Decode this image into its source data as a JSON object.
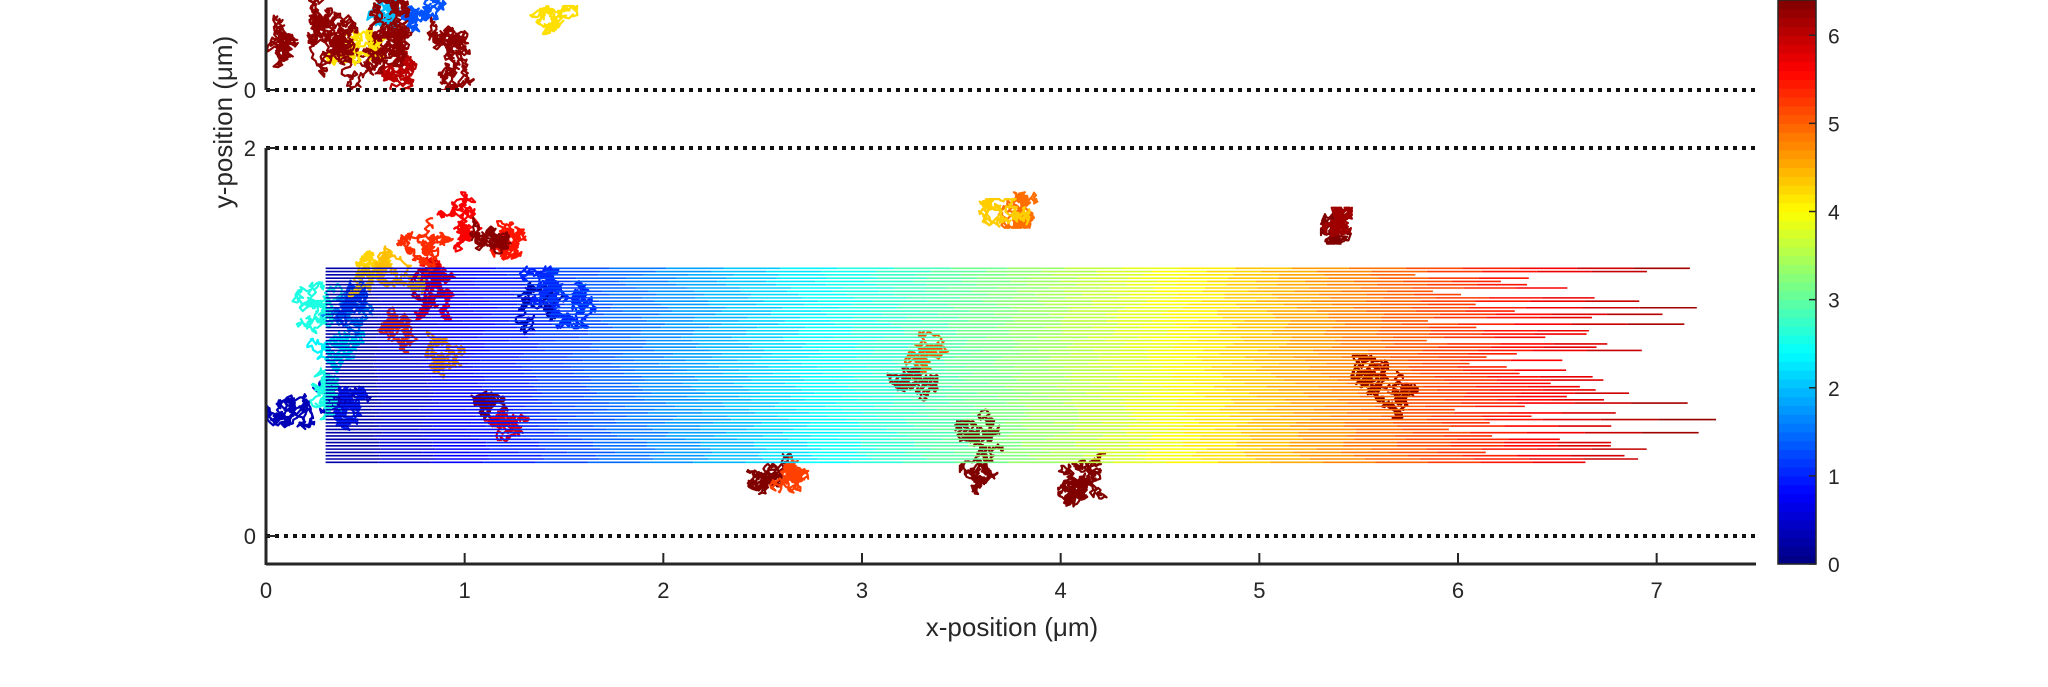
{
  "chart_data": {
    "type": "scatter",
    "xlabel": "x-position (μm)",
    "ylabel": "y-position (μm)",
    "xlim": [
      0,
      7.5
    ],
    "x_ticks": [
      "0",
      "1",
      "2",
      "3",
      "4",
      "5",
      "6",
      "7"
    ],
    "y_ticks_upper_panel": [
      "0"
    ],
    "y_ticks_lower_panel": [
      "2",
      "0"
    ],
    "panels": [
      {
        "name": "",
        "ylim": [
          0,
          0.9
        ],
        "boundary_lines_y": [
          0
        ]
      },
      {
        "name": "",
        "ylim": [
          0,
          2
        ],
        "boundary_lines_y": [
          0,
          2
        ]
      }
    ],
    "colorbar": {
      "ticks": [
        "0",
        "1",
        "2",
        "3",
        "4",
        "5",
        "6"
      ],
      "range": [
        0,
        6.4
      ],
      "colormap": "jet"
    },
    "trace_clouds": [
      {
        "x_center": 0.3,
        "y_center": 1.0,
        "spread_x": 0.35,
        "spread_y": 0.9,
        "value": 1.5
      },
      {
        "x_center": 0.7,
        "y_center": 1.2,
        "spread_x": 0.4,
        "spread_y": 0.7,
        "value": 5.0
      },
      {
        "x_center": 1.1,
        "y_center": 1.5,
        "spread_x": 0.3,
        "spread_y": 0.4,
        "value": 6.0
      },
      {
        "x_center": 1.4,
        "y_center": 1.1,
        "spread_x": 0.3,
        "spread_y": 0.4,
        "value": 0.8
      },
      {
        "x_center": 1.2,
        "y_center": 0.6,
        "spread_x": 0.2,
        "spread_y": 0.2,
        "value": 6.2
      },
      {
        "x_center": 2.6,
        "y_center": 0.4,
        "spread_x": 0.2,
        "spread_y": 0.2,
        "value": 6.0
      },
      {
        "x_center": 3.3,
        "y_center": 0.8,
        "spread_x": 0.15,
        "spread_y": 0.3,
        "value": 6.2
      },
      {
        "x_center": 3.6,
        "y_center": 0.4,
        "spread_x": 0.15,
        "spread_y": 0.25,
        "value": 6.3
      },
      {
        "x_center": 4.1,
        "y_center": 0.25,
        "spread_x": 0.15,
        "spread_y": 0.2,
        "value": 6.3
      },
      {
        "x_center": 3.8,
        "y_center": 1.65,
        "spread_x": 0.25,
        "spread_y": 0.08,
        "value": 4.6
      },
      {
        "x_center": 5.55,
        "y_center": 0.8,
        "spread_x": 0.2,
        "spread_y": 0.15,
        "value": 6.4
      },
      {
        "x_center": 5.4,
        "y_center": 1.6,
        "spread_x": 0.05,
        "spread_y": 0.06,
        "value": 6.4
      }
    ],
    "trajectory_lines": {
      "count": 60,
      "x_start": 0.3,
      "x_end_range": [
        5.2,
        7.5
      ],
      "y_range": [
        0.38,
        1.38
      ]
    }
  }
}
